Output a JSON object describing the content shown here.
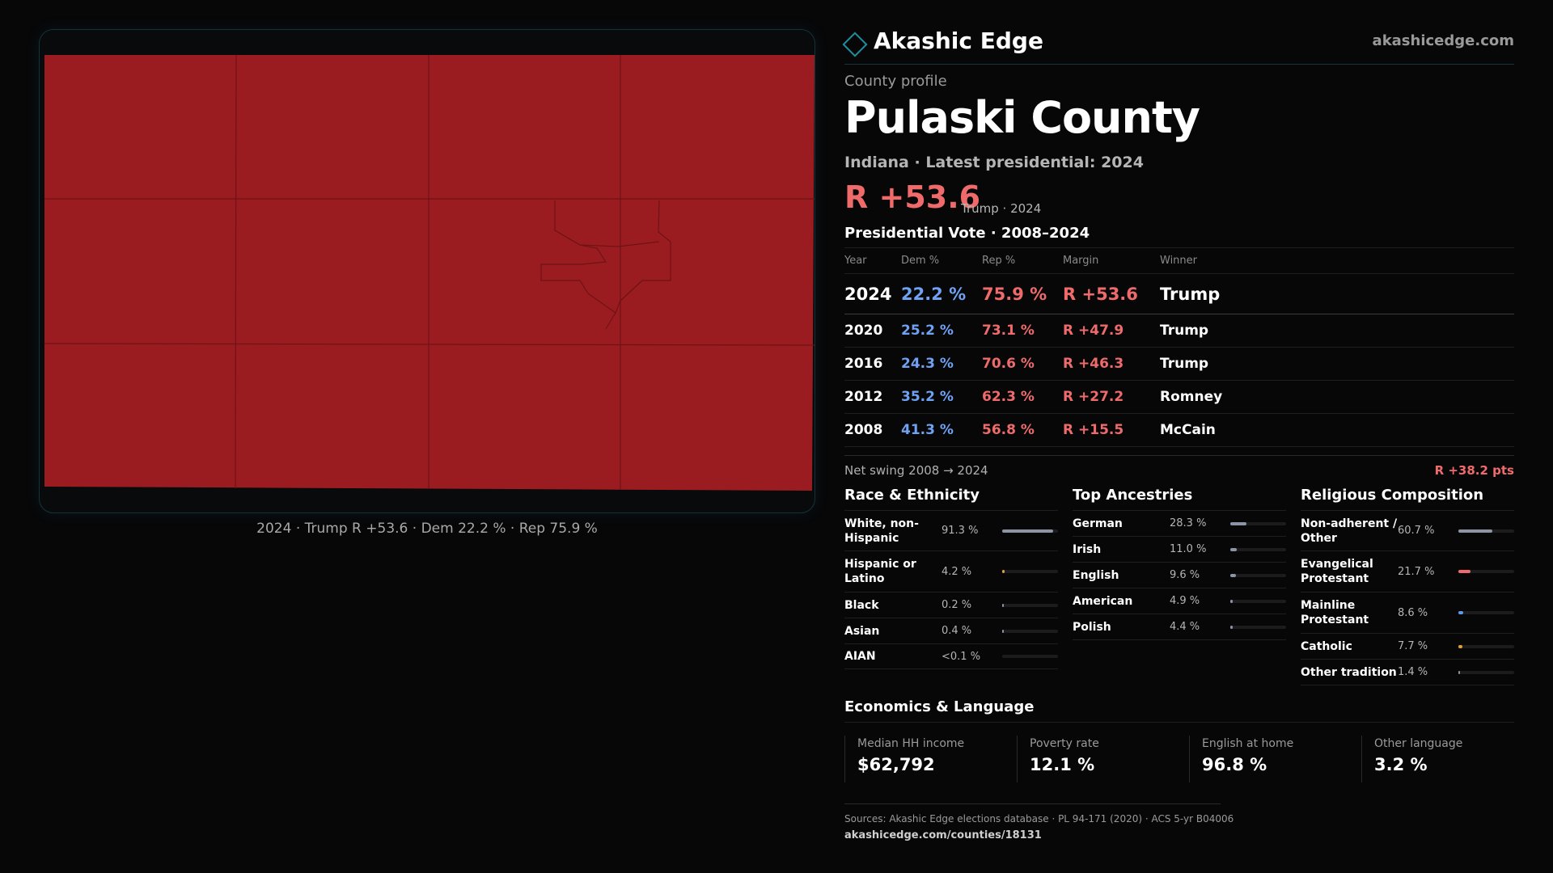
{
  "map": {
    "fill_color": "#9b1c20",
    "caption": "2024 · Trump R +53.6 · Dem 22.2 % · Rep 75.9 %"
  },
  "brand": {
    "name": "Akashic Edge",
    "url": "akashicedge.com",
    "icon": "diamond-logo-icon"
  },
  "profile": {
    "eyebrow": "County profile",
    "title": "Pulaski County",
    "subtitle": "Indiana · Latest presidential: 2024",
    "headline_margin": "R +53.6",
    "headline_note": "Trump · 2024"
  },
  "vote": {
    "title": "Presidential Vote · 2008–2024",
    "headers": [
      "Year",
      "Dem %",
      "Rep %",
      "Margin",
      "Winner"
    ],
    "rows": [
      {
        "year": "2024",
        "dem": "22.2 %",
        "rep": "75.9 %",
        "margin": "R +53.6",
        "winner": "Trump"
      },
      {
        "year": "2020",
        "dem": "25.2 %",
        "rep": "73.1 %",
        "margin": "R +47.9",
        "winner": "Trump"
      },
      {
        "year": "2016",
        "dem": "24.3 %",
        "rep": "70.6 %",
        "margin": "R +46.3",
        "winner": "Trump"
      },
      {
        "year": "2012",
        "dem": "35.2 %",
        "rep": "62.3 %",
        "margin": "R +27.2",
        "winner": "Romney"
      },
      {
        "year": "2008",
        "dem": "41.3 %",
        "rep": "56.8 %",
        "margin": "R +15.5",
        "winner": "McCain"
      }
    ],
    "swing_label": "Net swing 2008 → 2024",
    "swing_value": "R +38.2 pts"
  },
  "race": {
    "title": "Race & Ethnicity",
    "items": [
      {
        "label": "White, non-Hispanic",
        "value": "91.3 %",
        "pct": 91.3,
        "color": "#8d94a6"
      },
      {
        "label": "Hispanic or Latino",
        "value": "4.2 %",
        "pct": 4.2,
        "color": "#e0a030"
      },
      {
        "label": "Black",
        "value": "0.2 %",
        "pct": 0.2,
        "color": "#8d94a6"
      },
      {
        "label": "Asian",
        "value": "0.4 %",
        "pct": 0.4,
        "color": "#8d94a6"
      },
      {
        "label": "AIAN",
        "value": "<0.1 %",
        "pct": 0,
        "color": "#8d94a6"
      }
    ]
  },
  "ancestry": {
    "title": "Top Ancestries",
    "items": [
      {
        "label": "German",
        "value": "28.3 %",
        "pct": 28.3,
        "color": "#8d94a6"
      },
      {
        "label": "Irish",
        "value": "11.0 %",
        "pct": 11.0,
        "color": "#8d94a6"
      },
      {
        "label": "English",
        "value": "9.6 %",
        "pct": 9.6,
        "color": "#8d94a6"
      },
      {
        "label": "American",
        "value": "4.9 %",
        "pct": 4.9,
        "color": "#8d94a6"
      },
      {
        "label": "Polish",
        "value": "4.4 %",
        "pct": 4.4,
        "color": "#8d94a6"
      }
    ]
  },
  "religion": {
    "title": "Religious Composition",
    "items": [
      {
        "label": "Non-adherent / Other",
        "value": "60.7 %",
        "pct": 60.7,
        "color": "#8d94a6"
      },
      {
        "label": "Evangelical Protestant",
        "value": "21.7 %",
        "pct": 21.7,
        "color": "#ef6b6b"
      },
      {
        "label": "Mainline Protestant",
        "value": "8.6 %",
        "pct": 8.6,
        "color": "#5a9ae8"
      },
      {
        "label": "Catholic",
        "value": "7.7 %",
        "pct": 7.7,
        "color": "#e0a030"
      },
      {
        "label": "Other tradition",
        "value": "1.4 %",
        "pct": 1.4,
        "color": "#8d94a6"
      }
    ]
  },
  "economics": {
    "title": "Economics & Language",
    "cards": [
      {
        "label": "Median HH income",
        "value": "$62,792"
      },
      {
        "label": "Poverty rate",
        "value": "12.1 %"
      },
      {
        "label": "English at home",
        "value": "96.8 %"
      },
      {
        "label": "Other language",
        "value": "3.2 %"
      }
    ]
  },
  "footer": {
    "sources": "Sources: Akashic Edge elections database · PL 94-171 (2020) · ACS 5-yr B04006",
    "url": "akashicedge.com/counties/18131"
  }
}
